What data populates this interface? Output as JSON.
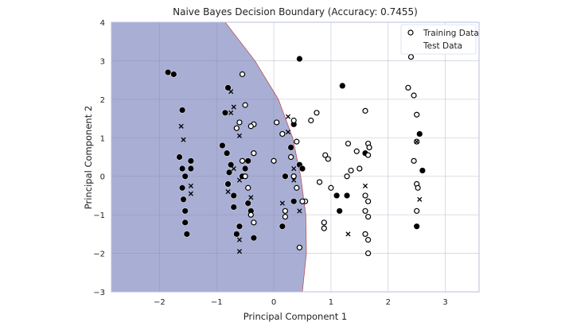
{
  "chart_data": {
    "type": "scatter",
    "title": "Naive Bayes Decision Boundary (Accuracy: 0.7455)",
    "xlabel": "Principal Component 1",
    "ylabel": "Principal Component 2",
    "xlim": [
      -2.84,
      3.59
    ],
    "ylim": [
      -3,
      4
    ],
    "xticks": [
      -2,
      -1,
      0,
      1,
      2,
      3
    ],
    "yticks": [
      -3,
      -2,
      -1,
      0,
      1,
      2,
      3,
      4
    ],
    "grid": true,
    "legend": {
      "position": "upper right",
      "entries": [
        "Training Data",
        "Test Data"
      ]
    },
    "decision_region": {
      "color": "#a9aed4",
      "boundary_color": "#c0504d",
      "boundary": [
        [
          -0.85,
          4
        ],
        [
          -0.33,
          3
        ],
        [
          0.08,
          2
        ],
        [
          0.33,
          1
        ],
        [
          0.47,
          0
        ],
        [
          0.56,
          -1
        ],
        [
          0.57,
          -2
        ],
        [
          0.5,
          -3
        ]
      ]
    },
    "series": [
      {
        "name": "Training Data",
        "marker": "circle",
        "points_class0_filled": [
          [
            -1.85,
            2.7
          ],
          [
            -1.75,
            2.65
          ],
          [
            -1.6,
            1.72
          ],
          [
            -1.65,
            0.5
          ],
          [
            -1.6,
            0.2
          ],
          [
            -1.55,
            0.0
          ],
          [
            -1.6,
            -0.3
          ],
          [
            -1.58,
            -0.6
          ],
          [
            -1.55,
            -0.9
          ],
          [
            -1.55,
            -1.2
          ],
          [
            -1.52,
            -1.5
          ],
          [
            -1.45,
            0.4
          ],
          [
            -1.45,
            0.2
          ],
          [
            -0.8,
            2.3
          ],
          [
            -0.85,
            1.65
          ],
          [
            -0.9,
            0.8
          ],
          [
            -0.82,
            0.6
          ],
          [
            -0.75,
            0.3
          ],
          [
            -0.78,
            0.1
          ],
          [
            -0.8,
            -0.2
          ],
          [
            -0.7,
            -0.5
          ],
          [
            -0.7,
            -0.8
          ],
          [
            -0.6,
            -1.3
          ],
          [
            -0.65,
            -1.5
          ],
          [
            -0.55,
            0.0
          ],
          [
            -0.45,
            -0.7
          ],
          [
            -0.4,
            -0.9
          ],
          [
            -0.35,
            -1.6
          ],
          [
            -0.45,
            0.4
          ],
          [
            -0.5,
            0.2
          ],
          [
            0.45,
            3.05
          ],
          [
            0.2,
            0.0
          ],
          [
            0.15,
            -1.3
          ],
          [
            0.35,
            1.35
          ],
          [
            0.3,
            0.75
          ],
          [
            0.45,
            0.3
          ],
          [
            0.5,
            0.2
          ],
          [
            0.35,
            -0.65
          ],
          [
            1.2,
            2.35
          ],
          [
            1.28,
            -0.5
          ],
          [
            1.1,
            -0.5
          ],
          [
            1.15,
            -0.9
          ],
          [
            1.6,
            0.6
          ],
          [
            2.55,
            1.1
          ],
          [
            2.6,
            0.15
          ],
          [
            2.5,
            -1.3
          ]
        ],
        "points_class1_hollow": [
          [
            -0.55,
            2.65
          ],
          [
            -0.5,
            1.85
          ],
          [
            -0.65,
            1.25
          ],
          [
            -0.35,
            1.35
          ],
          [
            -0.4,
            1.3
          ],
          [
            -0.6,
            1.4
          ],
          [
            -0.55,
            0.4
          ],
          [
            -0.35,
            0.6
          ],
          [
            -0.5,
            0.0
          ],
          [
            -0.45,
            -0.3
          ],
          [
            -0.4,
            -1.0
          ],
          [
            -0.35,
            -1.2
          ],
          [
            0.05,
            1.4
          ],
          [
            0.35,
            1.45
          ],
          [
            0.15,
            1.1
          ],
          [
            0.4,
            0.9
          ],
          [
            0.3,
            0.5
          ],
          [
            0.0,
            0.4
          ],
          [
            0.35,
            0.0
          ],
          [
            0.4,
            -0.3
          ],
          [
            0.55,
            -0.65
          ],
          [
            0.5,
            -0.65
          ],
          [
            0.2,
            -0.9
          ],
          [
            0.2,
            -1.05
          ],
          [
            0.45,
            -1.85
          ],
          [
            0.75,
            1.65
          ],
          [
            0.65,
            1.45
          ],
          [
            0.9,
            0.55
          ],
          [
            0.95,
            0.45
          ],
          [
            0.8,
            -0.15
          ],
          [
            1.0,
            -0.3
          ],
          [
            0.88,
            -1.2
          ],
          [
            0.88,
            -1.35
          ],
          [
            1.6,
            1.7
          ],
          [
            1.65,
            0.85
          ],
          [
            1.67,
            0.75
          ],
          [
            1.65,
            0.55
          ],
          [
            1.3,
            0.85
          ],
          [
            1.45,
            0.65
          ],
          [
            1.35,
            0.15
          ],
          [
            1.28,
            0.0
          ],
          [
            1.5,
            0.2
          ],
          [
            1.6,
            -0.5
          ],
          [
            1.65,
            -0.65
          ],
          [
            1.6,
            -0.9
          ],
          [
            1.65,
            -1.05
          ],
          [
            1.6,
            -1.5
          ],
          [
            1.65,
            -1.65
          ],
          [
            1.65,
            -2.0
          ],
          [
            2.4,
            3.1
          ],
          [
            2.35,
            2.3
          ],
          [
            2.45,
            2.1
          ],
          [
            2.5,
            1.6
          ],
          [
            2.5,
            0.9
          ],
          [
            2.45,
            0.4
          ],
          [
            2.5,
            -0.2
          ],
          [
            2.52,
            -0.3
          ],
          [
            2.5,
            -0.9
          ]
        ]
      },
      {
        "name": "Test Data",
        "marker": "x",
        "points": [
          [
            -1.62,
            1.3
          ],
          [
            -1.58,
            0.95
          ],
          [
            -1.45,
            -0.25
          ],
          [
            -1.45,
            -0.45
          ],
          [
            -0.75,
            2.2
          ],
          [
            -0.7,
            1.8
          ],
          [
            -0.75,
            1.65
          ],
          [
            -0.6,
            1.05
          ],
          [
            -0.7,
            0.2
          ],
          [
            -0.6,
            -0.1
          ],
          [
            -0.8,
            -0.4
          ],
          [
            -0.4,
            -0.55
          ],
          [
            -0.6,
            -1.65
          ],
          [
            -0.6,
            -1.95
          ],
          [
            0.25,
            1.55
          ],
          [
            0.25,
            1.15
          ],
          [
            0.35,
            0.2
          ],
          [
            0.35,
            -0.1
          ],
          [
            0.15,
            -0.7
          ],
          [
            0.45,
            -0.9
          ],
          [
            1.3,
            -1.5
          ],
          [
            1.6,
            -0.25
          ],
          [
            2.55,
            -0.6
          ],
          [
            2.5,
            0.9
          ]
        ]
      }
    ]
  }
}
